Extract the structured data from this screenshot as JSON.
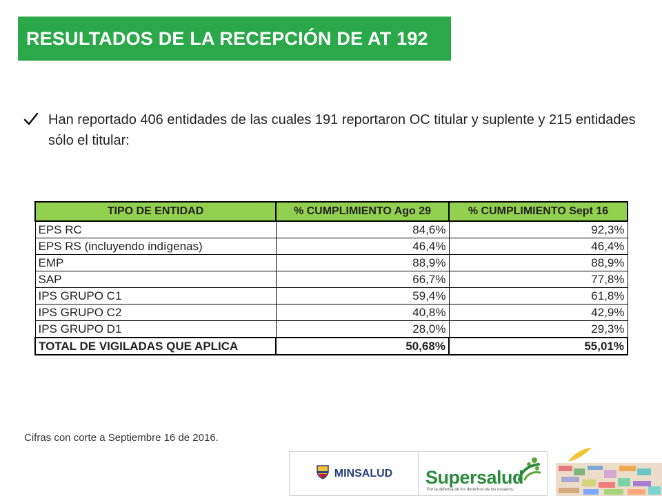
{
  "title": "RESULTADOS DE LA RECEPCIÓN DE AT 192",
  "bullet": {
    "icon": "check-icon",
    "text": "Han reportado 406 entidades de las cuales 191 reportaron OC titular y suplente y 215 entidades sólo el titular:"
  },
  "table": {
    "headers": [
      "TIPO DE ENTIDAD",
      "% CUMPLIMIENTO Ago 29",
      "% CUMPLIMIENTO Sept 16"
    ],
    "rows": [
      [
        "EPS RC",
        "84,6%",
        "92,3%"
      ],
      [
        "EPS RS (incluyendo indígenas)",
        "46,4%",
        "46,4%"
      ],
      [
        "EMP",
        "88,9%",
        "88,9%"
      ],
      [
        "SAP",
        "66,7%",
        "77,8%"
      ],
      [
        "IPS GRUPO C1",
        "59,4%",
        "61,8%"
      ],
      [
        "IPS GRUPO C2",
        "40,8%",
        "42,9%"
      ],
      [
        "IPS GRUPO D1",
        "28,0%",
        "29,3%"
      ]
    ],
    "total": [
      "TOTAL DE VIGILADAS QUE APLICA",
      "50,68%",
      "55,01%"
    ]
  },
  "footnote": "Cifras con corte a Septiembre 16 de 2016.",
  "logos": {
    "minsalud": "MINSALUD",
    "supersalud": "Supersalud",
    "supersalud_tagline": "Por la defensa de los derechos de los usuarios."
  },
  "colors": {
    "title_banner": "#2aa84a",
    "table_header": "#92d050"
  }
}
